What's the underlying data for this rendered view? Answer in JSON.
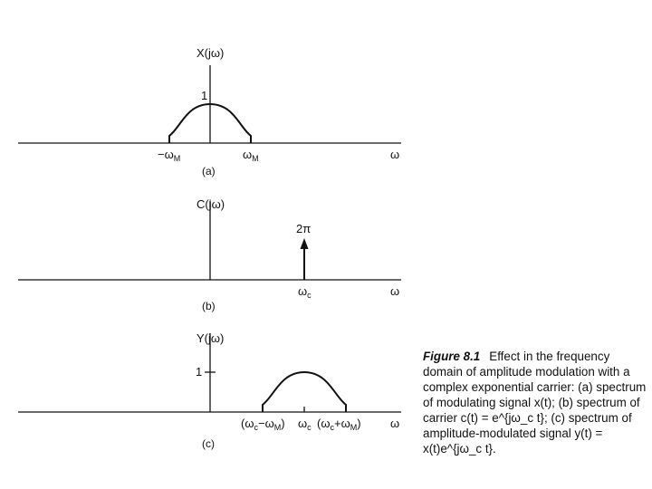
{
  "panel_a": {
    "ylabel": "X(jω)",
    "peak_label": "1",
    "tick_left": "−ω",
    "tick_left_sub": "M",
    "tick_right": "ω",
    "tick_right_sub": "M",
    "axis_label": "ω",
    "panel_label": "(a)"
  },
  "panel_b": {
    "ylabel": "C(jω)",
    "impulse_label": "2π",
    "tick": "ω",
    "tick_sub": "c",
    "axis_label": "ω",
    "panel_label": "(b)"
  },
  "panel_c": {
    "ylabel": "Y(jω)",
    "tick_one": "1",
    "tick_left": "(ω",
    "tick_left_sub1": "c",
    "tick_left_mid": "−ω",
    "tick_left_sub2": "M",
    "tick_left_end": ")",
    "tick_center": "ω",
    "tick_center_sub": "c",
    "tick_right": "(ω",
    "tick_right_sub1": "c",
    "tick_right_mid": "+ω",
    "tick_right_sub2": "M",
    "tick_right_end": ")",
    "axis_label": "ω",
    "panel_label": "(c)"
  },
  "caption": {
    "title": "Figure 8.1",
    "body": "Effect in the frequency domain of amplitude modulation with a complex exponential carrier: (a) spectrum of modulating signal x(t); (b) spectrum of carrier c(t) = e^{jω_c t}; (c) spectrum of amplitude-modulated signal y(t) = x(t)e^{jω_c t}."
  }
}
